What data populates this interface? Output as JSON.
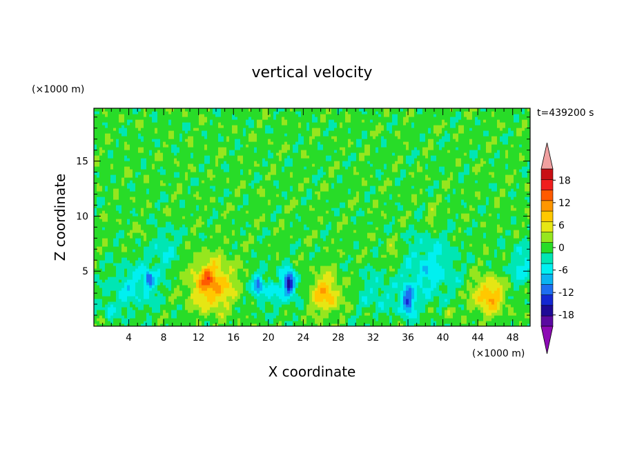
{
  "chart_data": {
    "type": "heatmap",
    "title": "vertical velocity",
    "xlabel": "X coordinate",
    "ylabel": "Z coordinate",
    "x_unit": "(×1000 m)",
    "y_unit": "(×1000 m)",
    "time_label": "t=439200 s",
    "xlim": [
      0,
      50
    ],
    "ylim": [
      0,
      19.8
    ],
    "x_ticks": [
      4,
      8,
      12,
      16,
      20,
      24,
      28,
      32,
      36,
      40,
      44,
      48
    ],
    "y_ticks": [
      5,
      10,
      15
    ],
    "colorbar": {
      "levels": [
        -21,
        -18,
        -15,
        -12,
        -9,
        -6,
        -3,
        0,
        3,
        6,
        9,
        12,
        15,
        18,
        21
      ],
      "tick_labels": [
        "18",
        "12",
        "6",
        "0",
        "-6",
        "-12",
        "-18"
      ],
      "colors": [
        "#5a0aa0",
        "#1e0a96",
        "#1428d2",
        "#1e6ef0",
        "#0ab4f0",
        "#00f0f0",
        "#00e6b4",
        "#28dc28",
        "#96e61e",
        "#e6e614",
        "#ffc800",
        "#ff9600",
        "#ff5a00",
        "#f01e1e",
        "#c80f14"
      ],
      "under_color": "#8c0ab4",
      "over_color": "#f0a0a0"
    },
    "background_value": 1.5,
    "features": [
      {
        "x": 13.5,
        "z": 3.8,
        "sx": 2.4,
        "sz": 2.2,
        "amp": 12
      },
      {
        "x": 12.9,
        "z": 4.6,
        "sx": 0.6,
        "sz": 0.8,
        "amp": 4
      },
      {
        "x": 26.5,
        "z": 3.0,
        "sx": 1.6,
        "sz": 1.7,
        "amp": 10
      },
      {
        "x": 45.3,
        "z": 2.8,
        "sx": 1.8,
        "sz": 1.6,
        "amp": 10.5
      },
      {
        "x": 40.8,
        "z": 1.4,
        "sx": 0.6,
        "sz": 0.6,
        "amp": 5
      },
      {
        "x": 38.8,
        "z": 10.0,
        "sx": 0.6,
        "sz": 1.0,
        "amp": 4
      },
      {
        "x": 34.2,
        "z": 6.8,
        "sx": 1.0,
        "sz": 1.0,
        "amp": 3.5
      },
      {
        "x": 20.8,
        "z": 4.3,
        "sx": 0.4,
        "sz": 0.7,
        "amp": 5
      },
      {
        "x": 5.8,
        "z": 8.2,
        "sx": 0.7,
        "sz": 0.9,
        "amp": 3
      },
      {
        "x": 22.4,
        "z": 4.0,
        "sx": 0.6,
        "sz": 1.0,
        "amp": -16
      },
      {
        "x": 36.0,
        "z": 2.3,
        "sx": 0.8,
        "sz": 1.4,
        "amp": -13
      },
      {
        "x": 18.8,
        "z": 3.6,
        "sx": 0.5,
        "sz": 1.0,
        "amp": -10
      },
      {
        "x": 6.3,
        "z": 4.3,
        "sx": 0.6,
        "sz": 0.8,
        "amp": -10
      },
      {
        "x": 38.5,
        "z": 5.2,
        "sx": 3.0,
        "sz": 3.0,
        "amp": -6
      },
      {
        "x": 32.5,
        "z": 3.0,
        "sx": 2.0,
        "sz": 2.0,
        "amp": -4
      },
      {
        "x": 21.0,
        "z": 3.5,
        "sx": 2.5,
        "sz": 1.8,
        "amp": -5
      },
      {
        "x": 4.5,
        "z": 3.5,
        "sx": 3.0,
        "sz": 2.2,
        "amp": -5
      },
      {
        "x": 1.8,
        "z": 1.5,
        "sx": 0.5,
        "sz": 0.7,
        "amp": -7
      },
      {
        "x": 49.0,
        "z": 5.5,
        "sx": 1.5,
        "sz": 2.0,
        "amp": -5
      },
      {
        "x": 8.0,
        "z": 7.0,
        "sx": 2.0,
        "sz": 2.0,
        "amp": -4
      }
    ]
  }
}
